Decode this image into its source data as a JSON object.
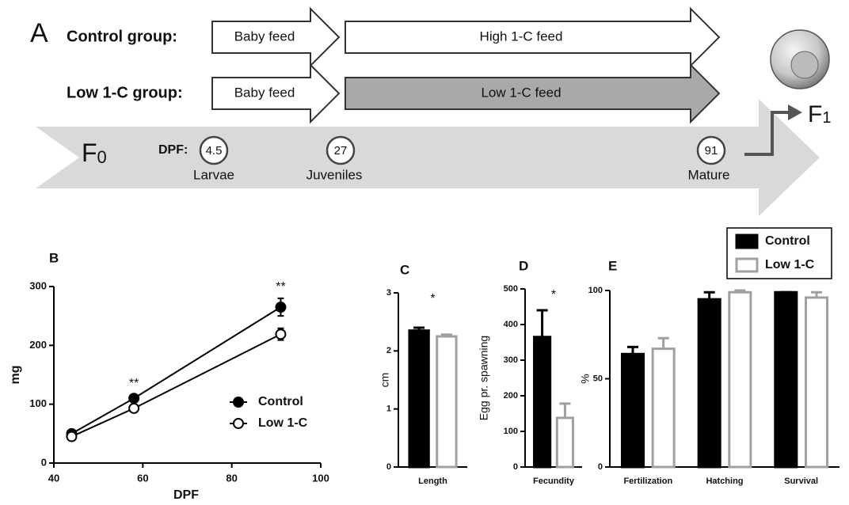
{
  "diagram": {
    "label": "A",
    "groups": [
      {
        "name": "Control group:",
        "stages": [
          {
            "text": "Baby feed",
            "shaded": false
          },
          {
            "text": "High 1-C feed",
            "shaded": false
          }
        ]
      },
      {
        "name": "Low 1-C group:",
        "stages": [
          {
            "text": "Baby feed",
            "shaded": false
          },
          {
            "text": "Low 1-C feed",
            "shaded": true
          }
        ]
      }
    ],
    "parent": {
      "text": "F",
      "sub": "0"
    },
    "offspring": {
      "text": "F",
      "sub": "1"
    },
    "dpf_label": "DPF:",
    "timepoints": [
      {
        "dpf": "4.5",
        "stage": "Larvae"
      },
      {
        "dpf": "27",
        "stage": "Juveniles"
      },
      {
        "dpf": "91",
        "stage": "Mature"
      }
    ]
  },
  "chart_data": [
    {
      "type": "line",
      "title": "B",
      "x_label": "DPF",
      "y_label": "mg",
      "x": [
        44,
        58,
        91
      ],
      "xlim": [
        40,
        100
      ],
      "xticks": [
        40,
        60,
        80,
        100
      ],
      "ylim": [
        0,
        300
      ],
      "yticks": [
        0,
        100,
        200,
        300
      ],
      "series": [
        {
          "name": "Control",
          "color": "#000000",
          "marker_fill": "#000000",
          "values": [
            50,
            110,
            265
          ],
          "errors": [
            5,
            6,
            15
          ]
        },
        {
          "name": "Low 1-C",
          "color": "#000000",
          "marker_fill": "#ffffff",
          "values": [
            45,
            93,
            219
          ],
          "errors": [
            4,
            5,
            10
          ]
        }
      ],
      "annotations": [
        {
          "text": "**",
          "x": 58
        },
        {
          "text": "**",
          "x": 91
        }
      ],
      "legend": "lower right"
    },
    {
      "type": "bar",
      "title": "C",
      "y_label": "cm",
      "categories": [
        "Length"
      ],
      "ylim": [
        0,
        3
      ],
      "yticks": [
        0,
        1,
        2,
        3
      ],
      "series": [
        {
          "color": "#000000",
          "fill": "#000000",
          "values": [
            2.35
          ],
          "errors": [
            0.05
          ]
        },
        {
          "color": "#a0a0a0",
          "fill": "#ffffff",
          "values": [
            2.25
          ],
          "errors": [
            0.03
          ]
        }
      ],
      "annotations": [
        {
          "text": "*",
          "category": "Length"
        }
      ]
    },
    {
      "type": "bar",
      "title": "D",
      "y_label": "Egg pr. spawning",
      "categories": [
        "Fecundity"
      ],
      "ylim": [
        0,
        500
      ],
      "yticks": [
        0,
        100,
        200,
        300,
        400,
        500
      ],
      "series": [
        {
          "color": "#000000",
          "fill": "#000000",
          "values": [
            365
          ],
          "errors": [
            75
          ]
        },
        {
          "color": "#a0a0a0",
          "fill": "#ffffff",
          "values": [
            138
          ],
          "errors": [
            40
          ]
        }
      ],
      "annotations": [
        {
          "text": "*",
          "category": "Fecundity"
        }
      ]
    },
    {
      "type": "bar",
      "title": "E",
      "y_label": "%",
      "categories": [
        "Fertilization",
        "Hatching",
        "Survival"
      ],
      "ylim": [
        0,
        100
      ],
      "yticks": [
        0,
        50,
        100
      ],
      "series": [
        {
          "name": "Control",
          "color": "#000000",
          "fill": "#000000",
          "values": [
            64,
            95,
            99
          ],
          "errors": [
            4,
            4,
            0
          ]
        },
        {
          "name": "Low 1-C",
          "color": "#a0a0a0",
          "fill": "#ffffff",
          "values": [
            67,
            99,
            96
          ],
          "errors": [
            6,
            1,
            3
          ]
        }
      ],
      "annotations": [],
      "legend": "upper right"
    }
  ]
}
